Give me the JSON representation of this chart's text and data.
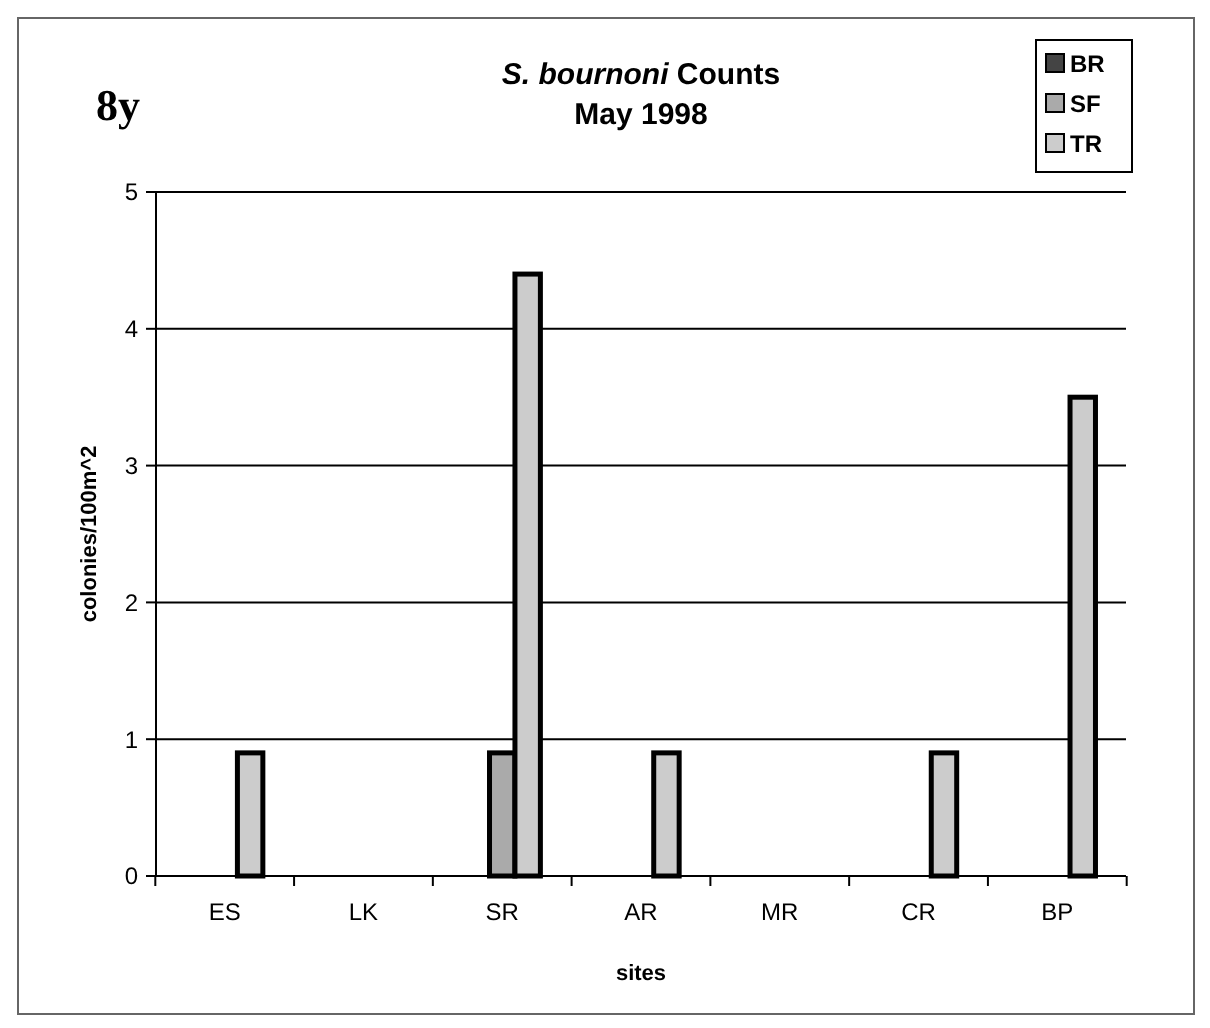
{
  "chart_data": {
    "type": "bar",
    "title": "S. bournoni Counts",
    "subtitle": "May 1998",
    "xlabel": "sites",
    "ylabel": "colonies/100m^2",
    "annotations": [
      "8y"
    ],
    "categories": [
      "ES",
      "LK",
      "SR",
      "AR",
      "MR",
      "CR",
      "BP"
    ],
    "series": [
      {
        "name": "BR",
        "color": "#444444",
        "values": [
          0,
          0,
          0,
          0,
          0,
          0,
          0
        ]
      },
      {
        "name": "SF",
        "color": "#aaaaaa",
        "values": [
          0,
          0,
          0.9,
          0,
          0,
          0,
          0
        ]
      },
      {
        "name": "TR",
        "color": "#cccccc",
        "values": [
          0.9,
          0,
          4.4,
          0.9,
          0,
          0.9,
          3.5
        ]
      }
    ],
    "ylim": [
      0,
      5
    ],
    "yticks": [
      0,
      1,
      2,
      3,
      4,
      5
    ],
    "grid": "y",
    "legend": "top right"
  }
}
